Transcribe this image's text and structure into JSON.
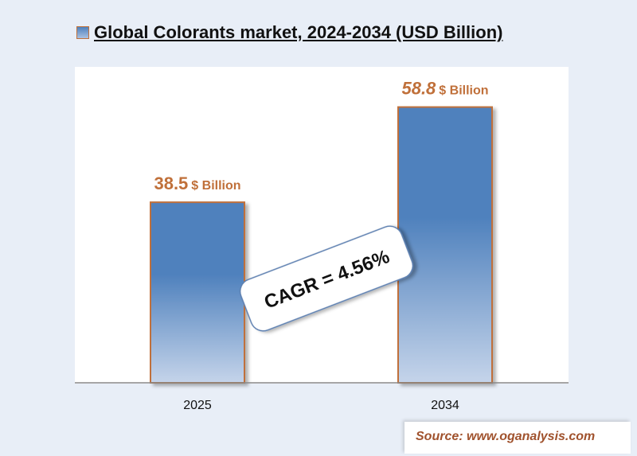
{
  "title": "Global Colorants market, 2024-2034 (USD Billion)",
  "source": "Source: www.oganalysis.com",
  "colors": {
    "bar_top": "#4f81bd",
    "bar_bottom": "#c5d4ea",
    "bar_border": "#c0703a",
    "value_label": "#c0703a"
  },
  "chart_data": {
    "type": "bar",
    "title": "Global Colorants market, 2024-2034 (USD Billion)",
    "categories": [
      "2025",
      "2034"
    ],
    "values": [
      38.5,
      58.8
    ],
    "value_unit": "$ Billion",
    "ylim": [
      0,
      65
    ],
    "grid": false,
    "annotations": [
      {
        "text": "CAGR = 4.56%"
      }
    ]
  }
}
